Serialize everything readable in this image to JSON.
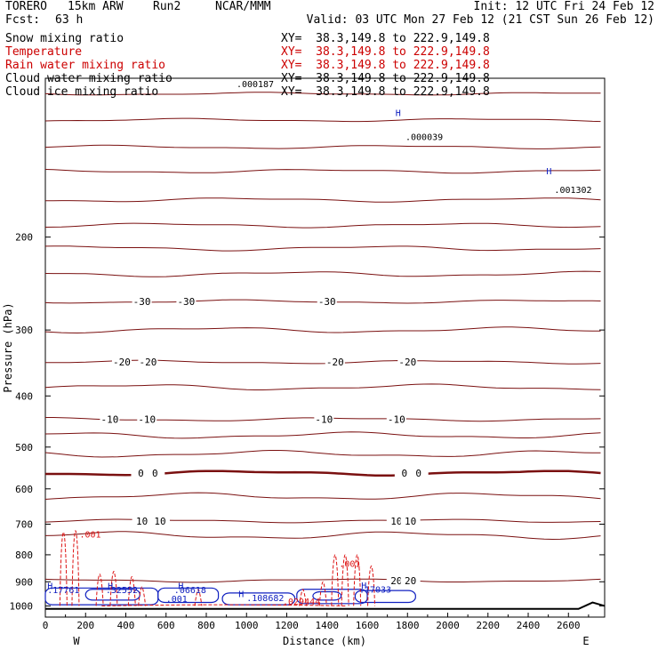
{
  "header": {
    "model": "TORERO",
    "resolution": "15km ARW",
    "run": "Run2",
    "org": "NCAR/MMM",
    "init": "Init: 12 UTC Fri 24 Feb 12",
    "fcst_label": "Fcst:",
    "fcst_value": "63 h",
    "valid": "Valid: 03 UTC Mon 27 Feb 12 (21 CST Sun 26 Feb 12)"
  },
  "fields": [
    {
      "name": "Snow mixing ratio",
      "xy": "XY=  38.3,149.8 to 222.9,149.8",
      "color": "#000000"
    },
    {
      "name": "Temperature",
      "xy": "XY=  38.3,149.8 to 222.9,149.8",
      "color": "#cc0000"
    },
    {
      "name": "Rain water mixing ratio",
      "xy": "XY=  38.3,149.8 to 222.9,149.8",
      "color": "#cc0000"
    },
    {
      "name": "Cloud water mixing ratio",
      "xy": "XY=  38.3,149.8 to 222.9,149.8",
      "color": "#000000"
    },
    {
      "name": "Cloud ice mixing ratio",
      "xy": "XY=  38.3,149.8 to 222.9,149.8",
      "color": "#000000"
    }
  ],
  "chart_data": {
    "type": "contour",
    "xlabel": "Distance (km)",
    "ylabel": "Pressure (hPa)",
    "xlim": [
      0,
      2780
    ],
    "ylim": [
      100,
      1050
    ],
    "y_scale": "log",
    "x_ticks": [
      0,
      200,
      400,
      600,
      800,
      1000,
      1200,
      1400,
      1600,
      1800,
      2000,
      2200,
      2400,
      2600
    ],
    "y_ticks": [
      200,
      300,
      400,
      500,
      600,
      700,
      800,
      900,
      1000
    ],
    "x_endpoints": [
      "W",
      "E"
    ],
    "colors": {
      "temperature": "#7a1010",
      "rain": "#dd1111",
      "cloud_water": "#1020c0",
      "terrain": "#000000"
    },
    "temperature_isotherms": [
      {
        "label": "-30",
        "label_x": [
          480,
          700,
          1400
        ],
        "pressure": 265
      },
      {
        "label": "-20",
        "label_x": [
          380,
          510,
          1440,
          1800
        ],
        "pressure": 345
      },
      {
        "label": "-10",
        "label_x": [
          320,
          505,
          1385,
          1745
        ],
        "pressure": 443
      },
      {
        "label": "0",
        "label_x": [
          475,
          545,
          1785,
          1855
        ],
        "pressure": 560
      },
      {
        "label": "10",
        "label_x": [
          480,
          570,
          1745,
          1815
        ],
        "pressure": 690
      },
      {
        "label": "20",
        "label_x": [
          1745,
          1815
        ],
        "pressure": 895
      }
    ],
    "temperature_levels_unlabeled_hPa": [
      107,
      120,
      135,
      150,
      170,
      190,
      210,
      235,
      300,
      385,
      475,
      515,
      620,
      735
    ],
    "rain_labels": [
      {
        "text": ".001",
        "x": 170,
        "p": 742
      },
      {
        "text": ".001",
        "x": 1460,
        "p": 843
      },
      {
        "text": ".029444",
        "x": 1180,
        "p": 995
      }
    ],
    "cloud_labels": [
      {
        "text": ".001",
        "x": 600,
        "p": 983
      },
      {
        "text": ".108682",
        "x": 1000,
        "p": 980
      },
      {
        "text": ".32552",
        "x": 300,
        "p": 946
      },
      {
        "text": ".17761",
        "x": 10,
        "p": 946
      },
      {
        "text": ".17033",
        "x": 1560,
        "p": 944
      },
      {
        "text": ".06618",
        "x": 640,
        "p": 946
      }
    ],
    "snow_labels": [
      {
        "text": ".000187",
        "x": 950,
        "p": 104
      },
      {
        "text": ".000039",
        "x": 1790,
        "p": 131
      },
      {
        "text": ".001302",
        "x": 2530,
        "p": 165
      }
    ],
    "h_markers": [
      {
        "x": 1740,
        "p": 118
      },
      {
        "x": 2490,
        "p": 152
      },
      {
        "x": 10,
        "p": 929
      },
      {
        "x": 310,
        "p": 930
      },
      {
        "x": 660,
        "p": 929
      },
      {
        "x": 960,
        "p": 962
      },
      {
        "x": 1570,
        "p": 928
      }
    ],
    "surface_pressure_hPa": 1013
  }
}
